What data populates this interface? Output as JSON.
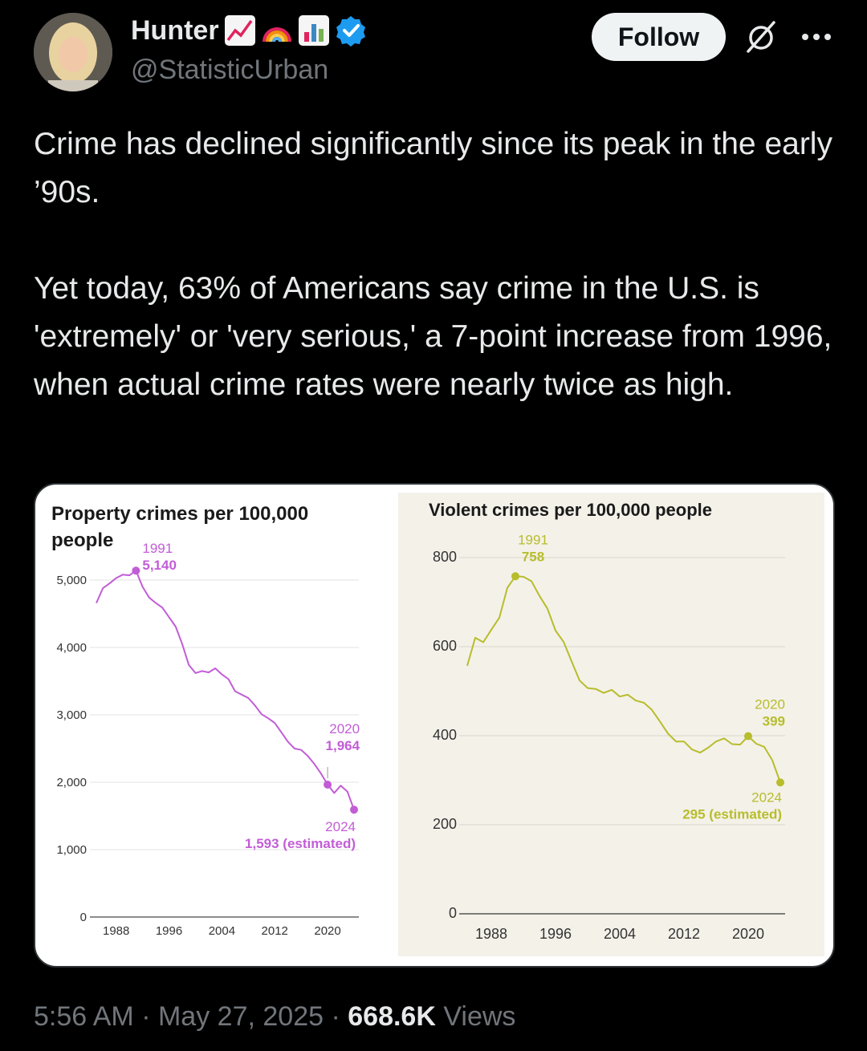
{
  "author": {
    "display_name": "Hunter",
    "emojis": [
      "chart-increasing-emoji",
      "rainbow-emoji",
      "bar-chart-emoji"
    ],
    "verified": true,
    "handle": "@StatisticUrban",
    "avatar": "avatar-photo"
  },
  "actions": {
    "follow_label": "Follow",
    "grok_icon": "grok-icon",
    "more_icon": "more-icon"
  },
  "tweet": {
    "paragraphs": [
      "Crime has declined significantly since its peak in the early ’90s.",
      "Yet today, 63% of Americans say crime in the U.S. is 'extremely' or 'very serious,' a 7-point increase from 1996, when actual crime rates were nearly twice as high."
    ]
  },
  "meta": {
    "time": "5:56 AM",
    "date": "May 27, 2025",
    "separator": "·",
    "views_count": "668.6K",
    "views_label": "Views"
  },
  "colors": {
    "background": "#000000",
    "text": "#e7e9ea",
    "muted": "#71767b",
    "property_line": "#c25dd6",
    "violent_line": "#b7bd2c",
    "verified_badge": "#1d9bf0"
  },
  "chart_data": [
    {
      "type": "line",
      "title": "Property crimes per 100,000 people",
      "xlabel": "",
      "ylabel": "",
      "xlim": [
        1985,
        2024
      ],
      "ylim": [
        0,
        5000
      ],
      "x_ticks": [
        1988,
        1996,
        2004,
        2012,
        2020
      ],
      "y_ticks": [
        0,
        1000,
        2000,
        3000,
        4000,
        5000
      ],
      "y_tick_labels": [
        "0",
        "1,000",
        "2,000",
        "3,000",
        "4,000",
        "5,000"
      ],
      "grid": true,
      "series": [
        {
          "x": [
            1985,
            1986,
            1987,
            1988,
            1989,
            1990,
            1991,
            1992,
            1993,
            1994,
            1995,
            1996,
            1997,
            1998,
            1999,
            2000,
            2001,
            2002,
            2003,
            2004,
            2005,
            2006,
            2007,
            2008,
            2009,
            2010,
            2011,
            2012,
            2013,
            2014,
            2015,
            2016,
            2017,
            2018,
            2019,
            2020,
            2021,
            2022,
            2023,
            2024
          ],
          "values": [
            4660,
            4880,
            4950,
            5030,
            5080,
            5070,
            5140,
            4900,
            4740,
            4660,
            4590,
            4450,
            4310,
            4050,
            3740,
            3620,
            3650,
            3630,
            3690,
            3600,
            3530,
            3350,
            3300,
            3250,
            3140,
            3010,
            2950,
            2880,
            2740,
            2600,
            2500,
            2480,
            2390,
            2270,
            2130,
            1964,
            1840,
            1950,
            1860,
            1593
          ]
        }
      ],
      "annotations": [
        {
          "year_label": "1991",
          "value_label": "5,140",
          "x": 1991,
          "y": 5140
        },
        {
          "year_label": "2020",
          "value_label": "1,964",
          "x": 2020,
          "y": 1964
        },
        {
          "year_label": "2024",
          "value_label": "1,593 (estimated)",
          "x": 2024,
          "y": 1593
        }
      ]
    },
    {
      "type": "line",
      "title": "Violent crimes per 100,000 people",
      "xlabel": "",
      "ylabel": "",
      "xlim": [
        1985,
        2024
      ],
      "ylim": [
        0,
        800
      ],
      "x_ticks": [
        1988,
        1996,
        2004,
        2012,
        2020
      ],
      "y_ticks": [
        0,
        200,
        400,
        600,
        800
      ],
      "y_tick_labels": [
        "0",
        "200",
        "400",
        "600",
        "800"
      ],
      "grid": true,
      "series": [
        {
          "x": [
            1985,
            1986,
            1987,
            1988,
            1989,
            1990,
            1991,
            1992,
            1993,
            1994,
            1995,
            1996,
            1997,
            1998,
            1999,
            2000,
            2001,
            2002,
            2003,
            2004,
            2005,
            2006,
            2007,
            2008,
            2009,
            2010,
            2011,
            2012,
            2013,
            2014,
            2015,
            2016,
            2017,
            2018,
            2019,
            2020,
            2021,
            2022,
            2023,
            2024
          ],
          "values": [
            557,
            620,
            610,
            638,
            665,
            732,
            758,
            757,
            747,
            714,
            685,
            636,
            611,
            567,
            524,
            507,
            505,
            496,
            503,
            488,
            492,
            479,
            474,
            458,
            432,
            405,
            387,
            387,
            369,
            362,
            373,
            387,
            394,
            381,
            380,
            399,
            382,
            375,
            345,
            295
          ]
        }
      ],
      "annotations": [
        {
          "year_label": "1991",
          "value_label": "758",
          "x": 1991,
          "y": 758
        },
        {
          "year_label": "2020",
          "value_label": "399",
          "x": 2020,
          "y": 399
        },
        {
          "year_label": "2024",
          "value_label": "295 (estimated)",
          "x": 2024,
          "y": 295
        }
      ]
    }
  ]
}
